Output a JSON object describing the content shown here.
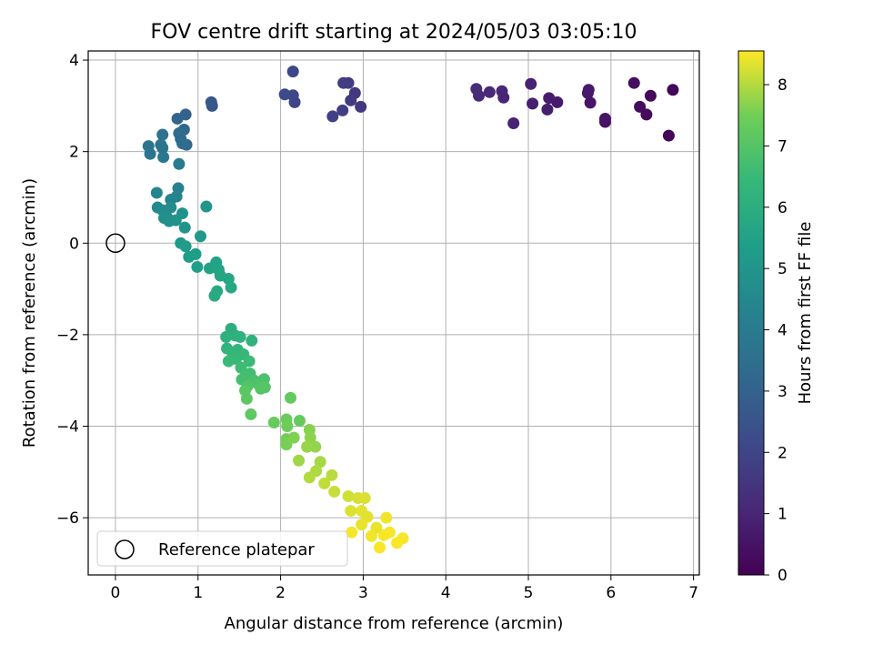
{
  "chart_data": {
    "type": "scatter",
    "title": "FOV centre drift starting at 2024/05/03 03:05:10",
    "xlabel": "Angular distance from reference (arcmin)",
    "ylabel": "Rotation from reference (arcmin)",
    "xlim": [
      -0.33,
      7.07
    ],
    "ylim": [
      -7.25,
      4.2
    ],
    "xticks": [
      "0",
      "1",
      "2",
      "3",
      "4",
      "5",
      "6",
      "7"
    ],
    "yticks": [
      "4",
      "2",
      "0",
      "−2",
      "−4",
      "−6"
    ],
    "grid": true,
    "legend": {
      "position": "lower-left",
      "entries": [
        "Reference platepar"
      ]
    },
    "reference_point": {
      "x": 0,
      "y": 0,
      "marker": "open-circle"
    },
    "colorbar": {
      "label": "Hours from first FF file",
      "colormap": "viridis",
      "range": [
        0,
        8.55
      ],
      "ticks": [
        "0",
        "1",
        "2",
        "3",
        "4",
        "5",
        "6",
        "7",
        "8"
      ]
    },
    "points": [
      [
        6.75,
        3.35,
        0.1
      ],
      [
        6.7,
        2.35,
        0.15
      ],
      [
        6.48,
        3.22,
        0.2
      ],
      [
        6.43,
        2.81,
        0.25
      ],
      [
        6.35,
        2.98,
        0.3
      ],
      [
        6.28,
        3.5,
        0.35
      ],
      [
        5.93,
        2.65,
        0.45
      ],
      [
        5.93,
        2.72,
        0.5
      ],
      [
        5.75,
        3.07,
        0.55
      ],
      [
        5.72,
        3.28,
        0.6
      ],
      [
        5.73,
        3.35,
        0.65
      ],
      [
        5.35,
        3.08,
        0.7
      ],
      [
        5.25,
        3.17,
        0.75
      ],
      [
        5.23,
        2.92,
        0.8
      ],
      [
        5.05,
        3.05,
        0.85
      ],
      [
        5.03,
        3.48,
        0.9
      ],
      [
        4.82,
        2.62,
        0.95
      ],
      [
        4.7,
        3.18,
        1.0
      ],
      [
        4.68,
        3.32,
        1.05
      ],
      [
        4.53,
        3.3,
        1.1
      ],
      [
        4.4,
        3.22,
        1.15
      ],
      [
        4.37,
        3.37,
        1.2
      ],
      [
        2.97,
        2.98,
        1.55
      ],
      [
        2.9,
        3.28,
        1.6
      ],
      [
        2.85,
        3.12,
        1.65
      ],
      [
        2.82,
        3.5,
        1.7
      ],
      [
        2.76,
        3.5,
        1.75
      ],
      [
        2.75,
        2.9,
        1.8
      ],
      [
        2.63,
        2.77,
        1.85
      ],
      [
        2.17,
        3.08,
        2.0
      ],
      [
        2.15,
        3.23,
        2.05
      ],
      [
        2.15,
        3.75,
        2.1
      ],
      [
        2.05,
        3.25,
        2.15
      ],
      [
        1.17,
        3.0,
        2.6
      ],
      [
        1.16,
        3.08,
        2.65
      ],
      [
        0.85,
        2.81,
        3.05
      ],
      [
        0.75,
        2.72,
        3.1
      ],
      [
        0.86,
        2.15,
        3.2
      ],
      [
        0.83,
        2.48,
        3.25
      ],
      [
        0.79,
        2.28,
        3.3
      ],
      [
        0.77,
        2.4,
        3.35
      ],
      [
        0.81,
        2.18,
        3.4
      ],
      [
        0.57,
        2.37,
        3.6
      ],
      [
        0.55,
        2.15,
        3.65
      ],
      [
        0.57,
        2.08,
        3.7
      ],
      [
        0.4,
        2.12,
        3.75
      ],
      [
        0.42,
        1.95,
        3.8
      ],
      [
        0.58,
        1.88,
        3.85
      ],
      [
        0.77,
        1.73,
        4.0
      ],
      [
        0.76,
        1.2,
        4.2
      ],
      [
        0.74,
        1.02,
        4.3
      ],
      [
        0.5,
        1.1,
        4.35
      ],
      [
        0.67,
        0.95,
        4.4
      ],
      [
        0.51,
        0.78,
        4.55
      ],
      [
        0.57,
        0.72,
        4.6
      ],
      [
        0.67,
        0.78,
        4.65
      ],
      [
        0.63,
        0.55,
        4.7
      ],
      [
        0.59,
        0.55,
        4.75
      ],
      [
        0.65,
        0.48,
        4.8
      ],
      [
        0.81,
        0.65,
        4.85
      ],
      [
        0.73,
        0.5,
        4.9
      ],
      [
        0.84,
        0.34,
        4.95
      ],
      [
        1.1,
        0.8,
        5.0
      ],
      [
        1.03,
        0.15,
        5.1
      ],
      [
        0.79,
        0.0,
        5.2
      ],
      [
        0.85,
        -0.07,
        5.25
      ],
      [
        0.89,
        -0.3,
        5.3
      ],
      [
        0.97,
        -0.24,
        5.35
      ],
      [
        0.99,
        -0.52,
        5.4
      ],
      [
        1.22,
        -0.42,
        5.5
      ],
      [
        1.14,
        -0.55,
        5.55
      ],
      [
        1.25,
        -0.58,
        5.6
      ],
      [
        1.27,
        -0.71,
        5.65
      ],
      [
        1.37,
        -0.78,
        5.7
      ],
      [
        1.4,
        -0.97,
        5.75
      ],
      [
        1.23,
        -1.05,
        5.8
      ],
      [
        1.2,
        -1.15,
        5.85
      ],
      [
        1.4,
        -1.87,
        6.0
      ],
      [
        1.45,
        -2.02,
        6.05
      ],
      [
        1.34,
        -2.05,
        6.1
      ],
      [
        1.51,
        -2.05,
        6.15
      ],
      [
        1.65,
        -2.13,
        6.2
      ],
      [
        1.35,
        -2.3,
        6.25
      ],
      [
        1.48,
        -2.33,
        6.3
      ],
      [
        1.42,
        -2.42,
        6.35
      ],
      [
        1.55,
        -2.43,
        6.4
      ],
      [
        1.46,
        -2.53,
        6.45
      ],
      [
        1.37,
        -2.58,
        6.5
      ],
      [
        1.62,
        -2.58,
        6.55
      ],
      [
        1.52,
        -2.72,
        6.6
      ],
      [
        1.63,
        -2.85,
        6.65
      ],
      [
        1.58,
        -2.88,
        6.7
      ],
      [
        1.53,
        -2.98,
        6.75
      ],
      [
        1.68,
        -3.0,
        6.8
      ],
      [
        1.8,
        -2.97,
        6.85
      ],
      [
        1.73,
        -3.08,
        6.9
      ],
      [
        1.6,
        -3.12,
        6.95
      ],
      [
        1.76,
        -3.18,
        7.0
      ],
      [
        1.81,
        -3.15,
        7.05
      ],
      [
        1.57,
        -3.22,
        7.1
      ],
      [
        1.59,
        -3.4,
        7.15
      ],
      [
        1.64,
        -3.74,
        7.2
      ],
      [
        2.12,
        -3.38,
        7.25
      ],
      [
        2.23,
        -3.88,
        7.3
      ],
      [
        1.92,
        -3.92,
        7.35
      ],
      [
        2.07,
        -3.85,
        7.4
      ],
      [
        2.08,
        -4.0,
        7.45
      ],
      [
        2.07,
        -4.28,
        7.5
      ],
      [
        2.07,
        -4.4,
        7.55
      ],
      [
        2.16,
        -4.25,
        7.6
      ],
      [
        2.35,
        -4.08,
        7.65
      ],
      [
        2.36,
        -4.25,
        7.7
      ],
      [
        2.42,
        -4.45,
        7.75
      ],
      [
        2.32,
        -4.45,
        7.8
      ],
      [
        2.22,
        -4.75,
        7.85
      ],
      [
        2.48,
        -4.78,
        7.9
      ],
      [
        2.43,
        -4.98,
        7.95
      ],
      [
        2.35,
        -5.12,
        8.0
      ],
      [
        2.62,
        -5.07,
        8.05
      ],
      [
        2.53,
        -5.25,
        8.1
      ],
      [
        2.65,
        -5.43,
        8.15
      ],
      [
        2.82,
        -5.53,
        8.2
      ],
      [
        2.94,
        -5.57,
        8.25
      ],
      [
        3.02,
        -5.57,
        8.3
      ],
      [
        2.85,
        -5.85,
        8.3
      ],
      [
        2.98,
        -5.85,
        8.35
      ],
      [
        3.05,
        -5.98,
        8.35
      ],
      [
        2.98,
        -6.15,
        8.4
      ],
      [
        3.16,
        -6.22,
        8.4
      ],
      [
        3.1,
        -6.4,
        8.45
      ],
      [
        3.28,
        -6.0,
        8.45
      ],
      [
        3.32,
        -6.32,
        8.5
      ],
      [
        3.25,
        -6.38,
        8.5
      ],
      [
        3.48,
        -6.45,
        8.5
      ],
      [
        3.41,
        -6.55,
        8.52
      ],
      [
        3.2,
        -6.65,
        8.52
      ],
      [
        2.86,
        -6.32,
        8.5
      ]
    ]
  }
}
